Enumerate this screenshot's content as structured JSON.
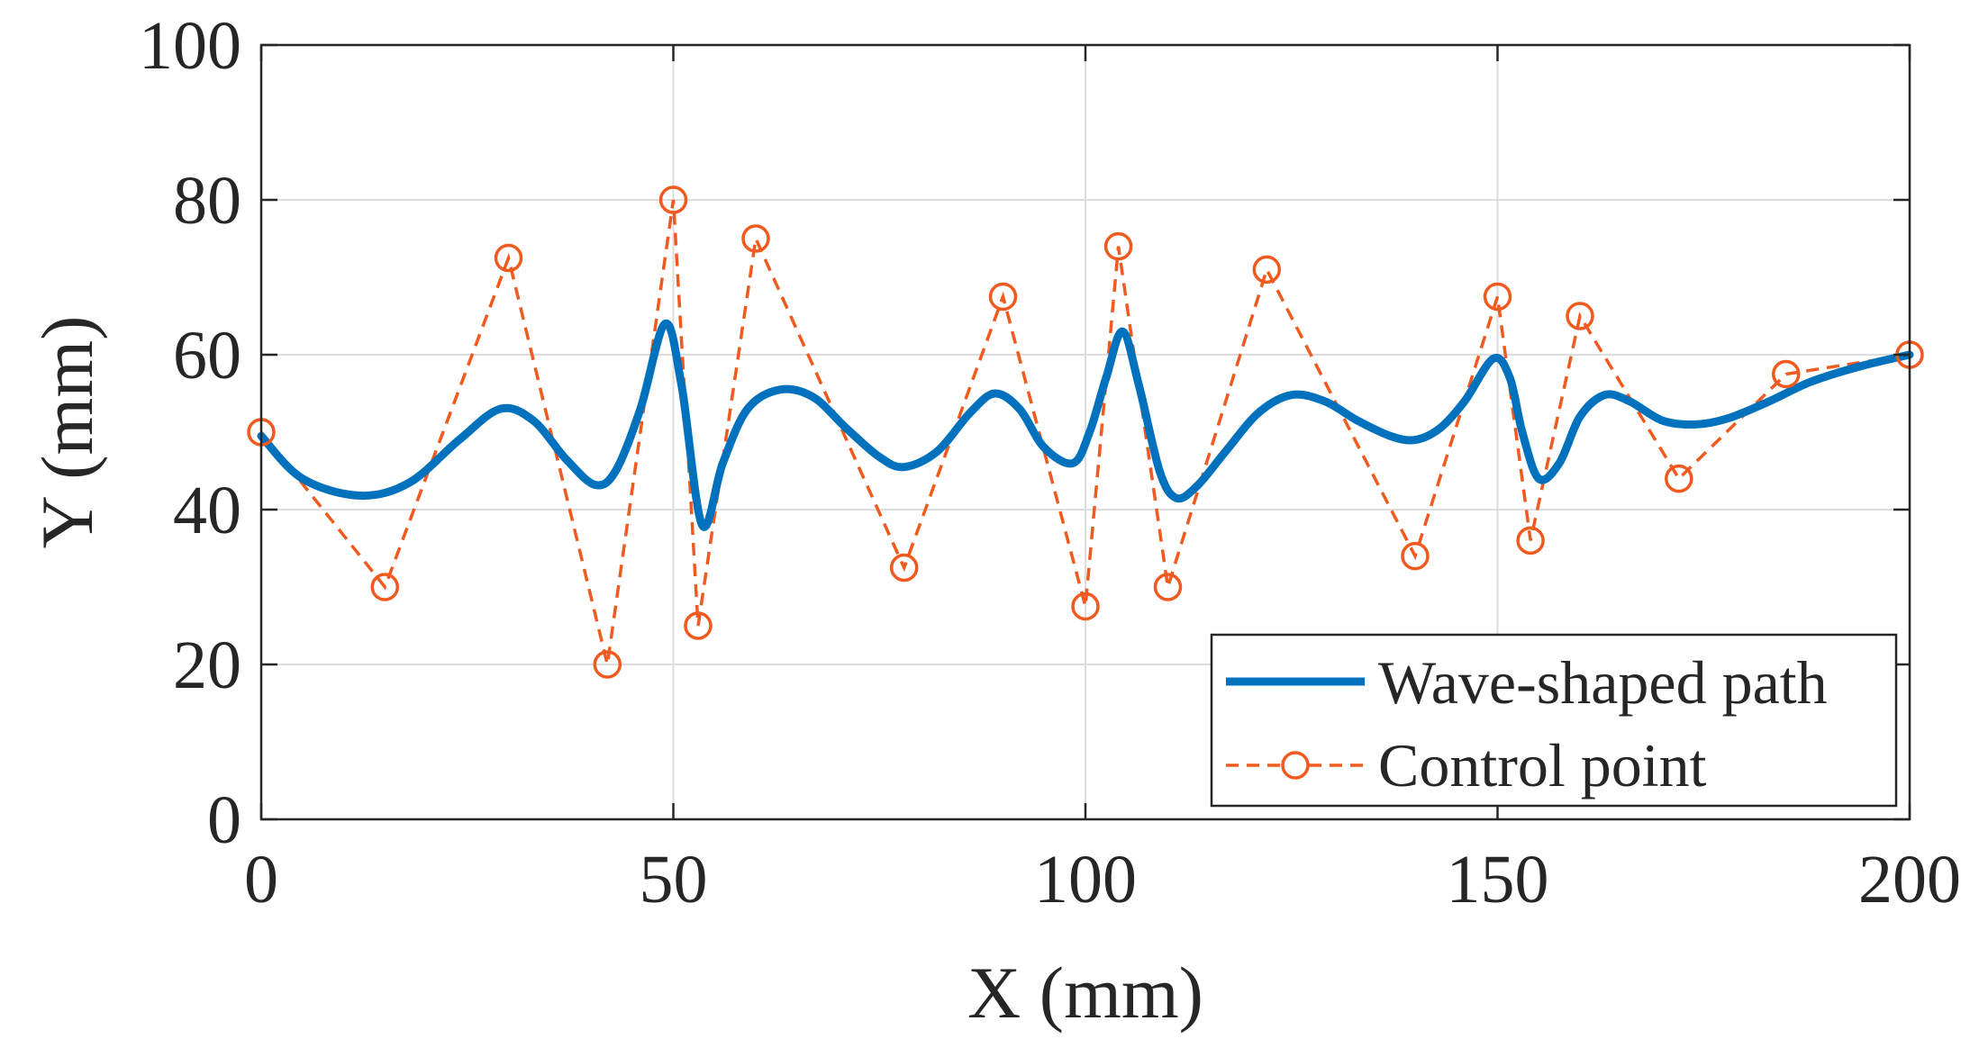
{
  "chart_data": {
    "type": "line",
    "xlabel": "X (mm)",
    "ylabel": "Y (mm)",
    "xlim": [
      0,
      200
    ],
    "ylim": [
      0,
      100
    ],
    "xticks": [
      "0",
      "50",
      "100",
      "150",
      "200"
    ],
    "yticks": [
      "0",
      "20",
      "40",
      "60",
      "80",
      "100"
    ],
    "grid": true,
    "legend_position": "bottom-right",
    "series": [
      {
        "name": "Wave-shaped path",
        "color": "#0072BD",
        "style": "solid",
        "x": [
          0,
          5,
          12,
          18,
          24,
          29,
          33,
          37,
          40.5,
          43,
          46,
          49,
          51,
          53.5,
          56,
          59,
          63,
          67,
          71,
          75,
          78,
          82,
          86,
          89,
          92,
          95,
          98.5,
          100.5,
          102.5,
          104.5,
          106.5,
          109,
          111,
          113.5,
          117,
          121,
          125,
          129,
          133,
          137,
          140,
          143,
          146,
          149.5,
          151.5,
          153,
          155,
          157.5,
          160,
          163,
          166,
          170,
          174,
          178,
          183,
          188,
          194,
          200
        ],
        "y": [
          49.5,
          44,
          41.8,
          43.5,
          49,
          53,
          51.5,
          46.5,
          43.2,
          45,
          53,
          64,
          56,
          38,
          46,
          53,
          55.5,
          54.5,
          50.5,
          46.8,
          45.5,
          47.5,
          52.5,
          55,
          53,
          48,
          46,
          50,
          57,
          63,
          56,
          45,
          41.5,
          43,
          47.5,
          52.5,
          54.8,
          54,
          51.5,
          49.5,
          49,
          50.5,
          54,
          59.5,
          57,
          50,
          44,
          46,
          52,
          54.8,
          54,
          51.5,
          51,
          51.8,
          54,
          56.5,
          58.5,
          60
        ]
      },
      {
        "name": "Control point",
        "color": "#F05A1E",
        "style": "dashed",
        "marker": "circle",
        "x": [
          0,
          15,
          30,
          42,
          50,
          53,
          60,
          78,
          90,
          100,
          104,
          110,
          122,
          140,
          150,
          154,
          160,
          172,
          185,
          200
        ],
        "y": [
          50,
          30,
          72.5,
          20,
          80,
          25,
          75,
          32.5,
          67.5,
          27.5,
          74,
          30,
          71,
          34,
          67.5,
          36,
          65,
          44,
          57.5,
          60
        ]
      }
    ]
  }
}
